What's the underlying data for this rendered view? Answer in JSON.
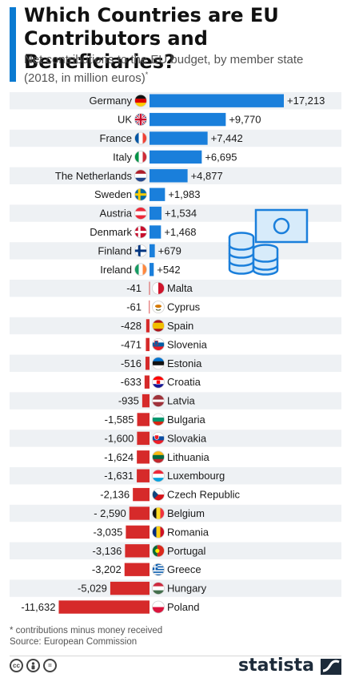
{
  "header": {
    "title": "Which Countries are EU Contributors and Beneficiaries?",
    "subtitle": "Net contributions to the EU budget, by member state (2018, in million euros)",
    "subtitle_mark": "*"
  },
  "footer": {
    "footnote": "* contributions minus money received",
    "source": "Source: European Commission",
    "brand": "statista",
    "cc_icons": [
      "cc",
      "person",
      "="
    ]
  },
  "colors": {
    "positive": "#1a7fdb",
    "negative": "#d62a2a",
    "accent": "#0a7ad1",
    "stripe": "#eef1f4"
  },
  "chart_data": {
    "type": "bar",
    "orientation": "horizontal",
    "title": "Which Countries are EU Contributors and Beneficiaries?",
    "categories": [
      "Germany",
      "UK",
      "France",
      "Italy",
      "The Netherlands",
      "Sweden",
      "Austria",
      "Denmark",
      "Finland",
      "Ireland",
      "Malta",
      "Cyprus",
      "Spain",
      "Slovenia",
      "Estonia",
      "Croatia",
      "Latvia",
      "Bulgaria",
      "Slovakia",
      "Lithuania",
      "Luxembourg",
      "Czech Republic",
      "Belgium",
      "Romania",
      "Portugal",
      "Greece",
      "Hungary",
      "Poland"
    ],
    "values": [
      17213,
      9770,
      7442,
      6695,
      4877,
      1983,
      1534,
      1468,
      679,
      542,
      -41,
      -61,
      -428,
      -471,
      -516,
      -633,
      -935,
      -1585,
      -1600,
      -1624,
      -1631,
      -2136,
      -2590,
      -3035,
      -3136,
      -3202,
      -5029,
      -11632
    ],
    "value_labels": [
      "+17,213",
      "+9,770",
      "+7,442",
      "+6,695",
      "+4,877",
      "+1,983",
      "+1,534",
      "+1,468",
      "+679",
      "+542",
      "-41",
      "-61",
      "-428",
      "-471",
      "-516",
      "-633",
      "-935",
      "-1,585",
      "-1,600",
      "-1,624",
      "-1,631",
      "-2,136",
      "- 2,590",
      "-3,035",
      "-3,136",
      "-3,202",
      "-5,029",
      "-11,632"
    ],
    "flags": [
      "germany",
      "uk",
      "france",
      "italy",
      "netherlands",
      "sweden",
      "austria",
      "denmark",
      "finland",
      "ireland",
      "malta",
      "cyprus",
      "spain",
      "slovenia",
      "estonia",
      "croatia",
      "latvia",
      "bulgaria",
      "slovakia",
      "lithuania",
      "luxembourg",
      "czech-republic",
      "belgium",
      "romania",
      "portugal",
      "greece",
      "hungary",
      "poland"
    ],
    "xlabel": "",
    "ylabel": "",
    "unit": "million euros",
    "grid": false,
    "legend": "none"
  }
}
